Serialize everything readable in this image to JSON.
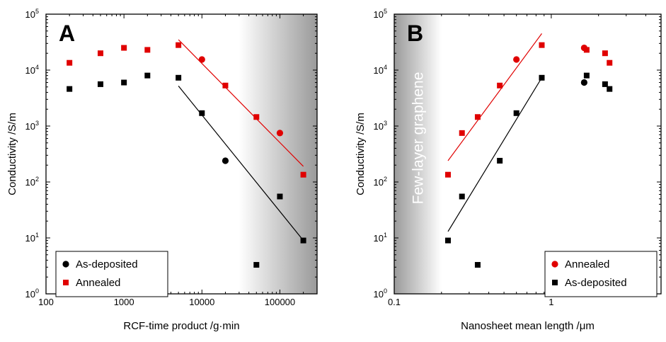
{
  "chart_data": [
    {
      "type": "scatter",
      "panel_label": "A",
      "xlabel": "RCF-time product /g·min",
      "ylabel": "Conductivity /S/m",
      "xscale": "log",
      "yscale": "log",
      "xlim": [
        100,
        300000
      ],
      "ylim": [
        1,
        100000
      ],
      "xticks": [
        {
          "value": 100,
          "label": "100"
        },
        {
          "value": 1000,
          "label": "1000"
        },
        {
          "value": 10000,
          "label": "10000"
        },
        {
          "value": 100000,
          "label": "100000"
        }
      ],
      "yticks": [
        {
          "value": 1,
          "base": "10",
          "exp": "0"
        },
        {
          "value": 10,
          "base": "10",
          "exp": "1"
        },
        {
          "value": 100,
          "base": "10",
          "exp": "2"
        },
        {
          "value": 1000,
          "base": "10",
          "exp": "3"
        },
        {
          "value": 10000,
          "base": "10",
          "exp": "4"
        },
        {
          "value": 100000,
          "base": "10",
          "exp": "5"
        }
      ],
      "shaded_region": {
        "x_from": 30000,
        "x_to": 300000,
        "gradient": "white-to-gray"
      },
      "legend_position": "bottom-left",
      "legend": [
        {
          "label": "As-deposited",
          "marker": "circle",
          "color": "#000000"
        },
        {
          "label": "Annealed",
          "marker": "square",
          "color": "#e00000"
        }
      ],
      "series": [
        {
          "name": "Annealed",
          "color": "#e00000",
          "marker": "square",
          "points": [
            [
              200,
              13500,
              "square"
            ],
            [
              500,
              20000,
              "square"
            ],
            [
              1000,
              25000,
              "square"
            ],
            [
              2000,
              23000,
              "square"
            ],
            [
              5000,
              28000,
              "square"
            ],
            [
              10000,
              15500,
              "circle"
            ],
            [
              20000,
              5300,
              "square"
            ],
            [
              50000,
              1450,
              "square"
            ],
            [
              100000,
              750,
              "circle"
            ],
            [
              200000,
              135,
              "square"
            ]
          ],
          "fit_line": [
            [
              5000,
              35000
            ],
            [
              200000,
              190
            ]
          ]
        },
        {
          "name": "As-deposited",
          "color": "#000000",
          "marker": "square",
          "points": [
            [
              200,
              4600,
              "square"
            ],
            [
              500,
              5600,
              "square"
            ],
            [
              1000,
              6000,
              "square"
            ],
            [
              2000,
              8000,
              "square"
            ],
            [
              5000,
              7300,
              "square"
            ],
            [
              10000,
              1700,
              "square"
            ],
            [
              20000,
              240,
              "circle"
            ],
            [
              50000,
              3.3,
              "square"
            ],
            [
              100000,
              55,
              "square"
            ],
            [
              200000,
              9,
              "square"
            ]
          ],
          "fit_line": [
            [
              5000,
              5200
            ],
            [
              200000,
              9
            ]
          ]
        }
      ]
    },
    {
      "type": "scatter",
      "panel_label": "B",
      "xlabel": "Nanosheet mean length /μm",
      "ylabel": "Conductivity /S/m",
      "xscale": "log",
      "yscale": "log",
      "xlim": [
        0.1,
        5
      ],
      "ylim": [
        1,
        100000
      ],
      "xticks": [
        {
          "value": 0.1,
          "label": "0.1"
        },
        {
          "value": 1,
          "label": "1"
        }
      ],
      "yticks": [
        {
          "value": 1,
          "base": "10",
          "exp": "0"
        },
        {
          "value": 10,
          "base": "10",
          "exp": "1"
        },
        {
          "value": 100,
          "base": "10",
          "exp": "2"
        },
        {
          "value": 1000,
          "base": "10",
          "exp": "3"
        },
        {
          "value": 10000,
          "base": "10",
          "exp": "4"
        },
        {
          "value": 100000,
          "base": "10",
          "exp": "5"
        }
      ],
      "shaded_region": {
        "x_from": 0.1,
        "x_to": 0.2,
        "gradient": "gray-to-white"
      },
      "region_annotation": "Few-layer graphene",
      "legend_position": "bottom-right",
      "legend": [
        {
          "label": "Annealed",
          "marker": "circle",
          "color": "#e00000"
        },
        {
          "label": "As-deposited",
          "marker": "square",
          "color": "#000000"
        }
      ],
      "series": [
        {
          "name": "Annealed",
          "color": "#e00000",
          "marker": "square",
          "points": [
            [
              0.22,
              135,
              "square"
            ],
            [
              0.27,
              750,
              "square"
            ],
            [
              0.34,
              1450,
              "square"
            ],
            [
              0.47,
              5300,
              "square"
            ],
            [
              0.6,
              15500,
              "circle"
            ],
            [
              0.87,
              28000,
              "square"
            ],
            [
              1.62,
              25000,
              "circle"
            ],
            [
              1.68,
              23000,
              "square"
            ],
            [
              2.2,
              20000,
              "square"
            ],
            [
              2.35,
              13500,
              "square"
            ]
          ],
          "fit_line": [
            [
              0.22,
              240
            ],
            [
              0.87,
              45000
            ]
          ]
        },
        {
          "name": "As-deposited",
          "color": "#000000",
          "marker": "square",
          "points": [
            [
              0.22,
              9,
              "square"
            ],
            [
              0.27,
              55,
              "square"
            ],
            [
              0.34,
              3.3,
              "square"
            ],
            [
              0.47,
              240,
              "square"
            ],
            [
              0.6,
              1700,
              "square"
            ],
            [
              0.87,
              7300,
              "square"
            ],
            [
              1.62,
              6000,
              "circle"
            ],
            [
              1.68,
              8000,
              "square"
            ],
            [
              2.2,
              5600,
              "square"
            ],
            [
              2.35,
              4600,
              "square"
            ]
          ],
          "fit_line": [
            [
              0.22,
              13
            ],
            [
              0.87,
              7300
            ]
          ]
        }
      ]
    }
  ]
}
